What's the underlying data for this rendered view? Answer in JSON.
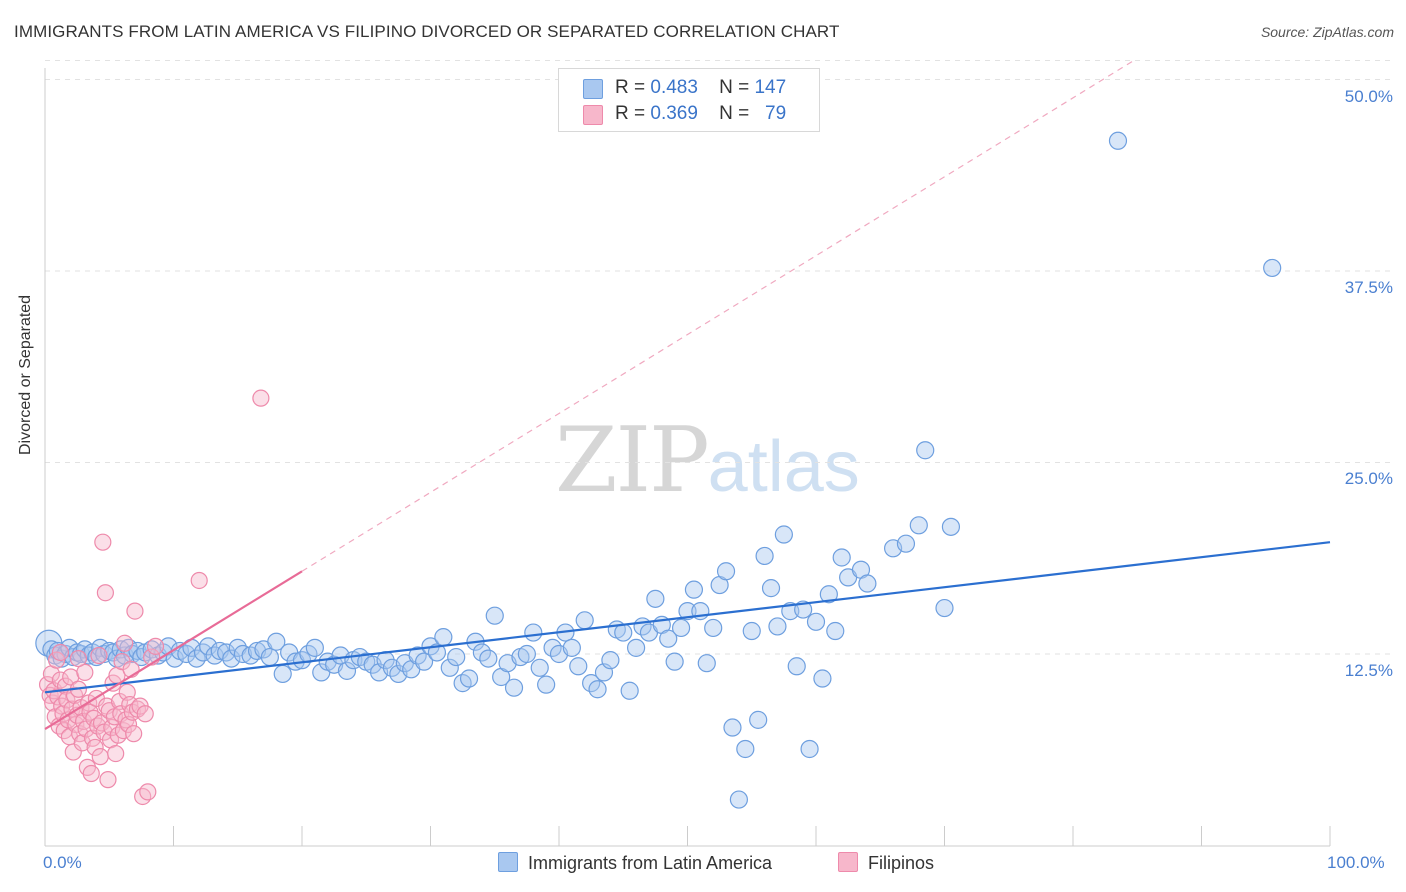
{
  "title": "IMMIGRANTS FROM LATIN AMERICA VS FILIPINO DIVORCED OR SEPARATED CORRELATION CHART",
  "source": "Source: ZipAtlas.com",
  "watermark": {
    "zip": "ZIP",
    "atlas": "atlas"
  },
  "legend": {
    "rows": [
      {
        "r_label": "R =",
        "r_value": "0.483",
        "n_label": "N =",
        "n_value": "147"
      },
      {
        "r_label": "R =",
        "r_value": "0.369",
        "n_label": "N =",
        "n_value": "79"
      }
    ]
  },
  "bottom_legend": {
    "series1": "Immigrants from Latin America",
    "series2": "Filipinos"
  },
  "colors": {
    "blue_fill": "#a9c8f0",
    "blue_stroke": "#6e9fdf",
    "blue_line": "#2b6fd0",
    "pink_fill": "#f7b7cb",
    "pink_stroke": "#ee8aab",
    "pink_line": "#e86b97",
    "tick_text": "#4a7fd0",
    "grid": "#e2e2e2"
  },
  "chart_data": {
    "type": "scatter",
    "title": "IMMIGRANTS FROM LATIN AMERICA VS FILIPINO DIVORCED OR SEPARATED CORRELATION CHART",
    "xlabel": "",
    "ylabel": "Divorced or Separated",
    "xlim": [
      0,
      100
    ],
    "ylim": [
      0,
      52
    ],
    "x_tick_labels": [
      "0.0%",
      "100.0%"
    ],
    "y_ticks": [
      12.5,
      25.0,
      37.5,
      50.0
    ],
    "y_tick_labels": [
      "12.5%",
      "25.0%",
      "37.5%",
      "50.0%"
    ],
    "grid": true,
    "legend_position": "top-center",
    "series": [
      {
        "name": "Immigrants from Latin America",
        "R": 0.483,
        "N": 147,
        "trend": {
          "x": [
            0,
            100
          ],
          "y": [
            10.0,
            19.8
          ]
        },
        "points": [
          [
            0.3,
            13.2
          ],
          [
            0.5,
            12.8
          ],
          [
            0.8,
            12.4
          ],
          [
            1.0,
            12.7
          ],
          [
            1.3,
            12.2
          ],
          [
            1.6,
            12.5
          ],
          [
            1.9,
            12.9
          ],
          [
            2.2,
            12.3
          ],
          [
            2.5,
            12.6
          ],
          [
            2.8,
            12.5
          ],
          [
            3.1,
            12.8
          ],
          [
            3.4,
            12.4
          ],
          [
            3.7,
            12.6
          ],
          [
            4.0,
            12.3
          ],
          [
            4.3,
            12.9
          ],
          [
            4.6,
            12.5
          ],
          [
            5.0,
            12.7
          ],
          [
            5.3,
            12.6
          ],
          [
            5.6,
            12.2
          ],
          [
            5.9,
            12.8
          ],
          [
            6.2,
            12.4
          ],
          [
            6.5,
            12.9
          ],
          [
            6.8,
            12.5
          ],
          [
            7.2,
            12.7
          ],
          [
            7.5,
            12.3
          ],
          [
            7.8,
            12.6
          ],
          [
            8.3,
            12.8
          ],
          [
            8.8,
            12.4
          ],
          [
            9.2,
            12.6
          ],
          [
            9.6,
            13.0
          ],
          [
            10.1,
            12.2
          ],
          [
            10.5,
            12.7
          ],
          [
            11.0,
            12.5
          ],
          [
            11.4,
            12.9
          ],
          [
            11.8,
            12.2
          ],
          [
            12.3,
            12.6
          ],
          [
            12.7,
            13.0
          ],
          [
            13.2,
            12.4
          ],
          [
            13.6,
            12.7
          ],
          [
            14.1,
            12.6
          ],
          [
            14.5,
            12.2
          ],
          [
            15.0,
            12.9
          ],
          [
            15.4,
            12.5
          ],
          [
            16.0,
            12.4
          ],
          [
            16.5,
            12.7
          ],
          [
            17.0,
            12.8
          ],
          [
            17.5,
            12.3
          ],
          [
            18.0,
            13.3
          ],
          [
            18.5,
            11.2
          ],
          [
            19.0,
            12.6
          ],
          [
            19.5,
            12.0
          ],
          [
            20.0,
            12.1
          ],
          [
            20.5,
            12.5
          ],
          [
            21.0,
            12.9
          ],
          [
            21.5,
            11.3
          ],
          [
            22.0,
            12.0
          ],
          [
            22.5,
            11.8
          ],
          [
            23.0,
            12.4
          ],
          [
            23.5,
            11.4
          ],
          [
            24.0,
            12.1
          ],
          [
            24.5,
            12.3
          ],
          [
            25.0,
            12.0
          ],
          [
            25.5,
            11.8
          ],
          [
            26.0,
            11.3
          ],
          [
            26.5,
            12.1
          ],
          [
            27.0,
            11.6
          ],
          [
            27.5,
            11.2
          ],
          [
            28.0,
            11.9
          ],
          [
            28.5,
            11.5
          ],
          [
            29.0,
            12.4
          ],
          [
            29.5,
            12.0
          ],
          [
            30.0,
            13.0
          ],
          [
            30.5,
            12.6
          ],
          [
            31.0,
            13.6
          ],
          [
            31.5,
            11.6
          ],
          [
            32.0,
            12.3
          ],
          [
            32.5,
            10.6
          ],
          [
            33.0,
            10.9
          ],
          [
            33.5,
            13.3
          ],
          [
            34.0,
            12.6
          ],
          [
            34.5,
            12.2
          ],
          [
            35.0,
            15.0
          ],
          [
            35.5,
            11.0
          ],
          [
            36.0,
            11.9
          ],
          [
            36.5,
            10.3
          ],
          [
            37.0,
            12.3
          ],
          [
            37.5,
            12.5
          ],
          [
            38.0,
            13.9
          ],
          [
            38.5,
            11.6
          ],
          [
            39.0,
            10.5
          ],
          [
            39.5,
            12.9
          ],
          [
            40.0,
            12.5
          ],
          [
            40.5,
            13.9
          ],
          [
            41.0,
            12.9
          ],
          [
            41.5,
            11.7
          ],
          [
            42.0,
            14.7
          ],
          [
            42.5,
            10.6
          ],
          [
            43.0,
            10.2
          ],
          [
            43.5,
            11.3
          ],
          [
            44.0,
            12.1
          ],
          [
            44.5,
            14.1
          ],
          [
            45.0,
            13.9
          ],
          [
            45.5,
            10.1
          ],
          [
            46.0,
            12.9
          ],
          [
            46.5,
            14.3
          ],
          [
            47.0,
            13.9
          ],
          [
            47.5,
            16.1
          ],
          [
            48.0,
            14.4
          ],
          [
            48.5,
            13.5
          ],
          [
            49.0,
            12.0
          ],
          [
            49.5,
            14.2
          ],
          [
            50.0,
            15.3
          ],
          [
            50.5,
            16.7
          ],
          [
            51.0,
            15.3
          ],
          [
            51.5,
            11.9
          ],
          [
            52.0,
            14.2
          ],
          [
            52.5,
            17.0
          ],
          [
            53.0,
            17.9
          ],
          [
            53.5,
            7.7
          ],
          [
            54.0,
            3.0
          ],
          [
            54.5,
            6.3
          ],
          [
            55.0,
            14.0
          ],
          [
            55.5,
            8.2
          ],
          [
            56.0,
            18.9
          ],
          [
            56.5,
            16.8
          ],
          [
            57.0,
            14.3
          ],
          [
            57.5,
            20.3
          ],
          [
            58.0,
            15.3
          ],
          [
            58.5,
            11.7
          ],
          [
            59.0,
            15.4
          ],
          [
            59.5,
            6.3
          ],
          [
            60.0,
            14.6
          ],
          [
            60.5,
            10.9
          ],
          [
            61.0,
            16.4
          ],
          [
            61.5,
            14.0
          ],
          [
            62.0,
            18.8
          ],
          [
            62.5,
            17.5
          ],
          [
            63.5,
            18.0
          ],
          [
            64.0,
            17.1
          ],
          [
            66.0,
            19.4
          ],
          [
            67.0,
            19.7
          ],
          [
            68.0,
            20.9
          ],
          [
            68.5,
            25.8
          ],
          [
            70.0,
            15.5
          ],
          [
            70.5,
            20.8
          ],
          [
            83.5,
            46.0
          ],
          [
            95.5,
            37.7
          ]
        ]
      },
      {
        "name": "Filipinos",
        "R": 0.369,
        "N": 79,
        "trend": {
          "x": [
            0,
            20
          ],
          "y": [
            7.6,
            17.9
          ]
        },
        "points": [
          [
            0.2,
            10.5
          ],
          [
            0.4,
            9.8
          ],
          [
            0.5,
            11.2
          ],
          [
            0.6,
            9.3
          ],
          [
            0.7,
            10.1
          ],
          [
            0.8,
            8.4
          ],
          [
            0.9,
            12.1
          ],
          [
            1.0,
            9.7
          ],
          [
            1.1,
            7.8
          ],
          [
            1.2,
            10.8
          ],
          [
            1.3,
            9.1
          ],
          [
            1.4,
            8.6
          ],
          [
            1.5,
            7.5
          ],
          [
            1.6,
            10.4
          ],
          [
            1.7,
            9.5
          ],
          [
            1.8,
            8.2
          ],
          [
            1.9,
            7.1
          ],
          [
            2.0,
            11.0
          ],
          [
            2.1,
            8.9
          ],
          [
            2.2,
            6.1
          ],
          [
            2.3,
            9.8
          ],
          [
            2.4,
            7.9
          ],
          [
            2.5,
            8.5
          ],
          [
            2.6,
            10.2
          ],
          [
            2.7,
            7.3
          ],
          [
            2.8,
            9.0
          ],
          [
            2.9,
            6.7
          ],
          [
            3.0,
            8.1
          ],
          [
            3.1,
            11.3
          ],
          [
            3.2,
            7.6
          ],
          [
            3.3,
            5.1
          ],
          [
            3.4,
            9.3
          ],
          [
            3.5,
            8.7
          ],
          [
            3.6,
            4.7
          ],
          [
            3.7,
            7.0
          ],
          [
            3.8,
            8.3
          ],
          [
            3.9,
            6.4
          ],
          [
            4.0,
            9.6
          ],
          [
            4.1,
            7.8
          ],
          [
            4.2,
            12.4
          ],
          [
            4.3,
            5.8
          ],
          [
            4.4,
            8.0
          ],
          [
            4.5,
            19.8
          ],
          [
            4.6,
            7.4
          ],
          [
            4.7,
            16.5
          ],
          [
            4.8,
            9.1
          ],
          [
            4.9,
            4.3
          ],
          [
            5.0,
            8.8
          ],
          [
            5.1,
            6.9
          ],
          [
            5.2,
            7.7
          ],
          [
            5.3,
            10.6
          ],
          [
            5.4,
            8.4
          ],
          [
            5.5,
            6.0
          ],
          [
            5.6,
            11.1
          ],
          [
            5.7,
            7.2
          ],
          [
            5.8,
            9.4
          ],
          [
            5.9,
            8.6
          ],
          [
            6.0,
            12.0
          ],
          [
            6.1,
            7.5
          ],
          [
            6.2,
            13.2
          ],
          [
            6.3,
            8.2
          ],
          [
            6.4,
            10.0
          ],
          [
            6.5,
            7.9
          ],
          [
            6.6,
            9.2
          ],
          [
            6.7,
            11.5
          ],
          [
            6.8,
            8.7
          ],
          [
            6.9,
            7.3
          ],
          [
            7.0,
            15.3
          ],
          [
            7.2,
            8.9
          ],
          [
            7.4,
            9.1
          ],
          [
            7.6,
            3.2
          ],
          [
            7.8,
            8.6
          ],
          [
            8.0,
            3.5
          ],
          [
            8.3,
            12.3
          ],
          [
            8.6,
            13.0
          ],
          [
            12.0,
            17.3
          ],
          [
            16.8,
            29.2
          ],
          [
            1.2,
            12.6
          ],
          [
            2.6,
            12.2
          ]
        ]
      }
    ]
  }
}
